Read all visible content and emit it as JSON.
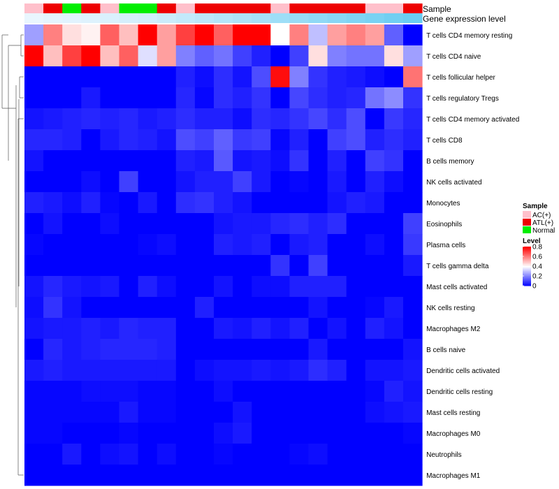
{
  "chart_data": {
    "type": "heatmap",
    "annotations": {
      "sample_label": "Sample",
      "gene_label": "Gene expression level",
      "samples": [
        "AC(+)",
        "ATL(+)",
        "Normal",
        "ATL(+)",
        "AC(+)",
        "Normal",
        "Normal",
        "ATL(+)",
        "AC(+)",
        "ATL(+)",
        "ATL(+)",
        "ATL(+)",
        "ATL(+)",
        "AC(+)",
        "ATL(+)",
        "ATL(+)",
        "ATL(+)",
        "ATL(+)",
        "AC(+)",
        "AC(+)",
        "ATL(+)"
      ],
      "gene_expression_shade": [
        0.05,
        0.08,
        0.1,
        0.12,
        0.15,
        0.18,
        0.2,
        0.25,
        0.3,
        0.35,
        0.4,
        0.45,
        0.5,
        0.55,
        0.6,
        0.65,
        0.7,
        0.75,
        0.8,
        0.85,
        0.9
      ]
    },
    "rows": [
      "T cells CD4 memory resting",
      "T cells CD4 naive",
      "T cells follicular helper",
      "T cells regulatory  Tregs",
      "T cells CD4 memory activated",
      "T cells CD8",
      "B cells memory",
      "NK cells activated",
      "Monocytes",
      "Eosinophils",
      "Plasma cells",
      "T cells gamma delta",
      "Mast cells activated",
      "NK cells resting",
      "Macrophages M2",
      "B cells naive",
      "Dendritic cells activated",
      "Dendritic cells resting",
      "Mast cells resting",
      "Macrophages M0",
      "Neutrophils",
      "Macrophages M1"
    ],
    "values": [
      [
        0.25,
        0.6,
        0.45,
        0.42,
        0.65,
        0.5,
        0.8,
        0.55,
        0.7,
        0.8,
        0.65,
        0.8,
        0.8,
        0.4,
        0.6,
        0.3,
        0.55,
        0.6,
        0.55,
        0.15,
        0.0
      ],
      [
        0.8,
        0.5,
        0.7,
        0.8,
        0.5,
        0.65,
        0.35,
        0.55,
        0.2,
        0.15,
        0.18,
        0.1,
        0.05,
        0.0,
        0.1,
        0.45,
        0.2,
        0.18,
        0.18,
        0.45,
        0.25
      ],
      [
        0.0,
        0.0,
        0.0,
        0.0,
        0.0,
        0.0,
        0.0,
        0.0,
        0.05,
        0.02,
        0.07,
        0.03,
        0.12,
        0.78,
        0.2,
        0.08,
        0.05,
        0.04,
        0.02,
        0.0,
        0.62
      ],
      [
        0.0,
        0.0,
        0.0,
        0.04,
        0.0,
        0.0,
        0.0,
        0.0,
        0.06,
        0.01,
        0.07,
        0.05,
        0.08,
        0.0,
        0.11,
        0.07,
        0.05,
        0.06,
        0.18,
        0.22,
        0.08
      ],
      [
        0.03,
        0.04,
        0.05,
        0.06,
        0.05,
        0.06,
        0.04,
        0.05,
        0.07,
        0.05,
        0.05,
        0.02,
        0.07,
        0.06,
        0.08,
        0.11,
        0.07,
        0.12,
        0.0,
        0.09,
        0.06
      ],
      [
        0.06,
        0.06,
        0.05,
        0.0,
        0.04,
        0.06,
        0.05,
        0.03,
        0.12,
        0.1,
        0.15,
        0.09,
        0.1,
        0.01,
        0.05,
        0.0,
        0.1,
        0.12,
        0.05,
        0.07,
        0.05
      ],
      [
        0.03,
        0.0,
        0.0,
        0.0,
        0.0,
        0.0,
        0.0,
        0.0,
        0.05,
        0.04,
        0.14,
        0.03,
        0.04,
        0.02,
        0.08,
        0.0,
        0.05,
        0.0,
        0.1,
        0.08,
        0.0
      ],
      [
        0.0,
        0.0,
        0.0,
        0.02,
        0.0,
        0.1,
        0.0,
        0.0,
        0.03,
        0.05,
        0.05,
        0.1,
        0.04,
        0.0,
        0.01,
        0.0,
        0.04,
        0.0,
        0.05,
        0.02,
        0.0
      ],
      [
        0.05,
        0.04,
        0.02,
        0.05,
        0.01,
        0.0,
        0.04,
        0.0,
        0.07,
        0.08,
        0.05,
        0.03,
        0.0,
        0.0,
        0.0,
        0.0,
        0.03,
        0.05,
        0.04,
        0.0,
        0.0
      ],
      [
        0.0,
        0.03,
        0.0,
        0.0,
        0.02,
        0.0,
        0.0,
        0.0,
        0.0,
        0.0,
        0.03,
        0.04,
        0.04,
        0.06,
        0.07,
        0.05,
        0.07,
        0.0,
        0.0,
        0.0,
        0.1
      ],
      [
        0.01,
        0.0,
        0.0,
        0.0,
        0.0,
        0.0,
        0.01,
        0.02,
        0.0,
        0.0,
        0.05,
        0.04,
        0.05,
        0.0,
        0.04,
        0.05,
        0.0,
        0.0,
        0.02,
        0.0,
        0.09
      ],
      [
        0.0,
        0.0,
        0.0,
        0.0,
        0.0,
        0.0,
        0.0,
        0.0,
        0.0,
        0.0,
        0.0,
        0.0,
        0.0,
        0.08,
        0.0,
        0.1,
        0.0,
        0.0,
        0.0,
        0.0,
        0.04
      ],
      [
        0.03,
        0.06,
        0.04,
        0.03,
        0.04,
        0.0,
        0.05,
        0.02,
        0.0,
        0.0,
        0.03,
        0.0,
        0.02,
        0.02,
        0.05,
        0.05,
        0.05,
        0.0,
        0.0,
        0.0,
        0.0
      ],
      [
        0.02,
        0.08,
        0.03,
        0.0,
        0.0,
        0.0,
        0.0,
        0.0,
        0.0,
        0.05,
        0.0,
        0.0,
        0.0,
        0.0,
        0.0,
        0.03,
        0.0,
        0.0,
        0.01,
        0.04,
        0.0
      ],
      [
        0.03,
        0.04,
        0.04,
        0.05,
        0.04,
        0.06,
        0.05,
        0.05,
        0.0,
        0.0,
        0.04,
        0.03,
        0.05,
        0.03,
        0.05,
        0.0,
        0.03,
        0.0,
        0.05,
        0.03,
        0.0
      ],
      [
        0.0,
        0.06,
        0.04,
        0.05,
        0.06,
        0.06,
        0.06,
        0.05,
        0.0,
        0.0,
        0.0,
        0.0,
        0.0,
        0.0,
        0.0,
        0.04,
        0.0,
        0.0,
        0.0,
        0.0,
        0.03
      ],
      [
        0.04,
        0.05,
        0.04,
        0.04,
        0.04,
        0.04,
        0.04,
        0.04,
        0.0,
        0.02,
        0.03,
        0.03,
        0.04,
        0.03,
        0.04,
        0.07,
        0.05,
        0.0,
        0.03,
        0.03,
        0.04
      ],
      [
        0.01,
        0.01,
        0.01,
        0.02,
        0.02,
        0.02,
        0.01,
        0.01,
        0.0,
        0.0,
        0.02,
        0.0,
        0.0,
        0.0,
        0.0,
        0.0,
        0.0,
        0.0,
        0.01,
        0.05,
        0.03
      ],
      [
        0.01,
        0.01,
        0.01,
        0.01,
        0.01,
        0.04,
        0.01,
        0.01,
        0.0,
        0.0,
        0.0,
        0.03,
        0.0,
        0.0,
        0.0,
        0.0,
        0.0,
        0.0,
        0.02,
        0.03,
        0.04
      ],
      [
        0.01,
        0.01,
        0.0,
        0.0,
        0.0,
        0.01,
        0.0,
        0.0,
        0.0,
        0.0,
        0.02,
        0.04,
        0.0,
        0.0,
        0.0,
        0.0,
        0.0,
        0.0,
        0.0,
        0.0,
        0.01
      ],
      [
        0.0,
        0.0,
        0.04,
        0.0,
        0.02,
        0.03,
        0.0,
        0.02,
        0.0,
        0.0,
        0.01,
        0.0,
        0.0,
        0.0,
        0.01,
        0.02,
        0.0,
        0.0,
        0.0,
        0.0,
        0.0
      ],
      [
        0.0,
        0.0,
        0.0,
        0.0,
        0.0,
        0.0,
        0.0,
        0.0,
        0.0,
        0.0,
        0.0,
        0.0,
        0.0,
        0.0,
        0.0,
        0.0,
        0.0,
        0.0,
        0.0,
        0.0,
        0.0
      ]
    ],
    "value_range": [
      0,
      0.8
    ],
    "legend": {
      "sample_title": "Sample",
      "sample_items": [
        {
          "label": "AC(+)",
          "color": "#ffc0cb"
        },
        {
          "label": "ATL(+)",
          "color": "#ee0000"
        },
        {
          "label": "Normal",
          "color": "#00ee00"
        }
      ],
      "level_title": "Level",
      "level_ticks": [
        {
          "value": 0.8,
          "label": "0.8"
        },
        {
          "value": 0.6,
          "label": "0.6"
        },
        {
          "value": 0.4,
          "label": "0.4"
        },
        {
          "value": 0.2,
          "label": "0.2"
        },
        {
          "value": 0,
          "label": "0"
        }
      ]
    },
    "colors": {
      "low": "#0000ff",
      "mid": "#ffffff",
      "high": "#ff0000",
      "gene_low": "#f0f8ff",
      "gene_high": "#5bc8f0"
    }
  }
}
